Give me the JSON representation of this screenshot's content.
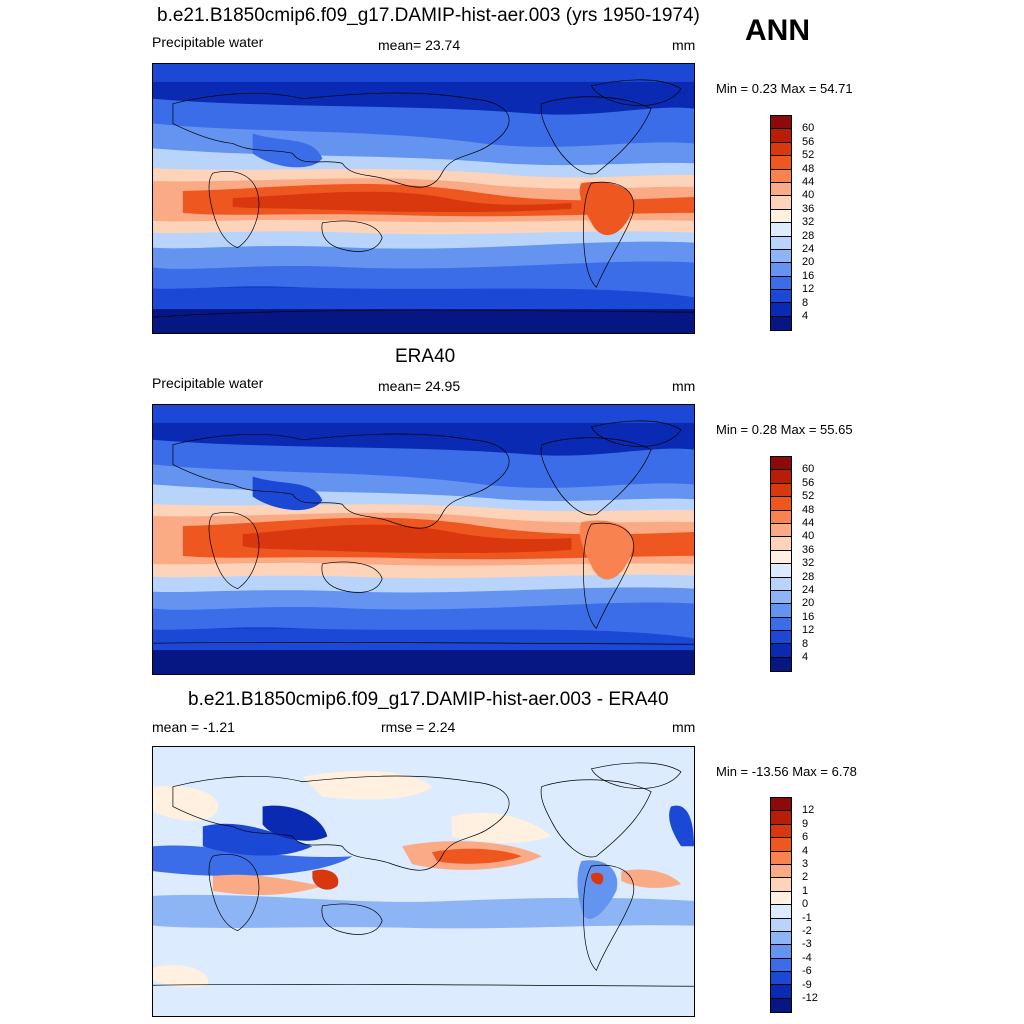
{
  "season": "ANN",
  "panels": [
    {
      "title": "b.e21.B1850cmip6.f09_g17.DAMIP-hist-aer.003 (yrs 1950-1974)",
      "left_label": "Precipitable water",
      "center_label": "mean=  23.74",
      "units": "mm",
      "minmax": "Min =   0.23 Max =  54.71"
    },
    {
      "title": "ERA40",
      "left_label": "Precipitable water",
      "center_label": "mean=  24.95",
      "units": "mm",
      "minmax": "Min =   0.28 Max =  55.65"
    },
    {
      "title": "b.e21.B1850cmip6.f09_g17.DAMIP-hist-aer.003 - ERA40",
      "left_label": "mean =  -1.21",
      "center_label": "rmse =   2.24",
      "units": "mm",
      "minmax": "Min = -13.56 Max =   6.78"
    }
  ],
  "colorbar_abs": {
    "levels": [
      "60",
      "56",
      "52",
      "48",
      "44",
      "40",
      "36",
      "32",
      "28",
      "24",
      "20",
      "16",
      "12",
      "8",
      "4"
    ],
    "colors": [
      "#8b0a0a",
      "#b81d08",
      "#d9380e",
      "#ef5720",
      "#f98251",
      "#fbaa86",
      "#fdd3ba",
      "#fff0e0",
      "#dcebfd",
      "#b8d4fb",
      "#8db5f6",
      "#6493f0",
      "#3b6de8",
      "#1b49d5",
      "#0a2ab4",
      "#061682"
    ]
  },
  "colorbar_diff": {
    "levels": [
      "12",
      "9",
      "6",
      "4",
      "3",
      "2",
      "1",
      "0",
      "-1",
      "-2",
      "-3",
      "-4",
      "-6",
      "-9",
      "-12"
    ],
    "colors": [
      "#8b0a0a",
      "#b81d08",
      "#d9380e",
      "#ef5720",
      "#f98251",
      "#fbaa86",
      "#fdd3ba",
      "#fff0e0",
      "#dcebfd",
      "#b8d4fb",
      "#8db5f6",
      "#6493f0",
      "#3b6de8",
      "#1b49d5",
      "#0a2ab4",
      "#061682"
    ]
  }
}
